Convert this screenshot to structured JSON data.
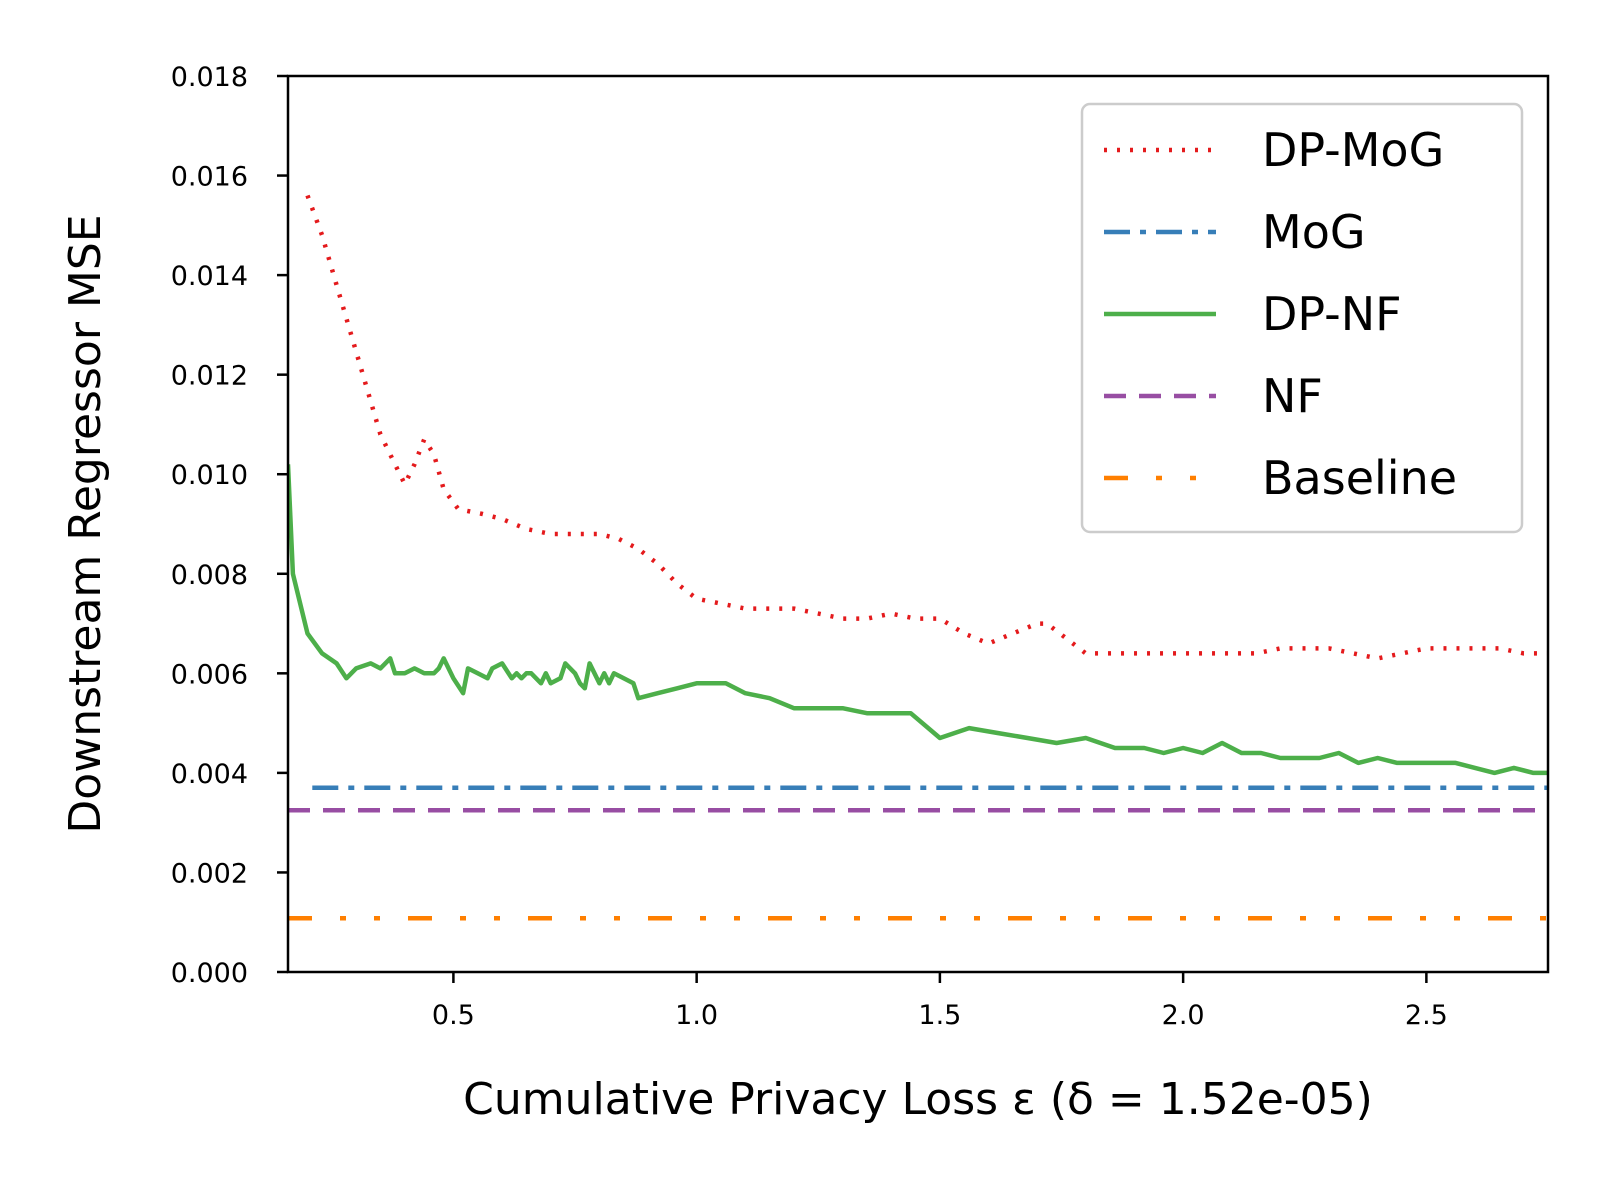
{
  "chart_data": {
    "type": "line",
    "title": "",
    "xlabel": "Cumulative Privacy Loss ε (δ  = 1.52e-05)",
    "ylabel": "Downstream Regressor MSE",
    "xlim": [
      0.16,
      2.75
    ],
    "ylim": [
      0,
      0.018
    ],
    "x_ticks": [
      "0.5",
      "1.0",
      "1.5",
      "2.0",
      "2.5"
    ],
    "x_tick_values": [
      0.5,
      1.0,
      1.5,
      2.0,
      2.5
    ],
    "y_ticks": [
      "0.000",
      "0.002",
      "0.004",
      "0.006",
      "0.008",
      "0.010",
      "0.012",
      "0.014",
      "0.016",
      "0.018"
    ],
    "y_tick_values": [
      0,
      0.002,
      0.004,
      0.006,
      0.008,
      0.01,
      0.012,
      0.014,
      0.016,
      0.018
    ],
    "grid": false,
    "legend_position": "top-right",
    "series": [
      {
        "name": "DP-MoG",
        "color": "#e41a1c",
        "style": "dotted",
        "x": [
          0.2,
          0.23,
          0.26,
          0.29,
          0.32,
          0.35,
          0.38,
          0.4,
          0.42,
          0.44,
          0.46,
          0.48,
          0.51,
          0.56,
          0.6,
          0.65,
          0.7,
          0.75,
          0.8,
          0.84,
          0.88,
          0.92,
          0.96,
          1.0,
          1.05,
          1.1,
          1.15,
          1.2,
          1.25,
          1.3,
          1.35,
          1.4,
          1.45,
          1.5,
          1.55,
          1.6,
          1.65,
          1.7,
          1.72,
          1.76,
          1.8,
          1.85,
          1.9,
          1.95,
          2.0,
          2.05,
          2.1,
          2.15,
          2.2,
          2.25,
          2.3,
          2.35,
          2.4,
          2.45,
          2.5,
          2.55,
          2.6,
          2.65,
          2.7,
          2.75
        ],
        "y": [
          0.0156,
          0.0148,
          0.0138,
          0.0128,
          0.0118,
          0.0108,
          0.0102,
          0.0098,
          0.0102,
          0.0107,
          0.0104,
          0.0097,
          0.0093,
          0.0092,
          0.0091,
          0.0089,
          0.0088,
          0.0088,
          0.0088,
          0.0087,
          0.0085,
          0.0082,
          0.0078,
          0.0075,
          0.0074,
          0.0073,
          0.0073,
          0.0073,
          0.0072,
          0.0071,
          0.0071,
          0.0072,
          0.0071,
          0.0071,
          0.0068,
          0.0066,
          0.0068,
          0.007,
          0.007,
          0.0067,
          0.0064,
          0.0064,
          0.0064,
          0.0064,
          0.0064,
          0.0064,
          0.0064,
          0.0064,
          0.0065,
          0.0065,
          0.0065,
          0.0064,
          0.0063,
          0.0064,
          0.0065,
          0.0065,
          0.0065,
          0.0065,
          0.0064,
          0.0064
        ]
      },
      {
        "name": "MoG",
        "color": "#377eb8",
        "style": "dashdot",
        "x": [
          0.21,
          2.75
        ],
        "y": [
          0.0037,
          0.0037
        ]
      },
      {
        "name": "DP-NF",
        "color": "#4daf4a",
        "style": "solid",
        "x": [
          0.16,
          0.17,
          0.2,
          0.23,
          0.26,
          0.28,
          0.3,
          0.33,
          0.35,
          0.36,
          0.37,
          0.38,
          0.4,
          0.42,
          0.44,
          0.46,
          0.47,
          0.48,
          0.5,
          0.52,
          0.53,
          0.55,
          0.57,
          0.58,
          0.6,
          0.62,
          0.63,
          0.64,
          0.65,
          0.66,
          0.68,
          0.69,
          0.7,
          0.72,
          0.73,
          0.75,
          0.76,
          0.77,
          0.78,
          0.8,
          0.81,
          0.82,
          0.83,
          0.85,
          0.87,
          0.88,
          0.92,
          0.96,
          1.0,
          1.06,
          1.1,
          1.15,
          1.2,
          1.25,
          1.3,
          1.35,
          1.4,
          1.44,
          1.5,
          1.56,
          1.62,
          1.68,
          1.74,
          1.8,
          1.86,
          1.92,
          1.96,
          2.0,
          2.04,
          2.08,
          2.12,
          2.16,
          2.2,
          2.24,
          2.28,
          2.32,
          2.36,
          2.4,
          2.44,
          2.48,
          2.52,
          2.56,
          2.6,
          2.64,
          2.68,
          2.72,
          2.75
        ],
        "y": [
          0.0102,
          0.008,
          0.0068,
          0.0064,
          0.0062,
          0.0059,
          0.0061,
          0.0062,
          0.0061,
          0.0062,
          0.0063,
          0.006,
          0.006,
          0.0061,
          0.006,
          0.006,
          0.0061,
          0.0063,
          0.0059,
          0.0056,
          0.0061,
          0.006,
          0.0059,
          0.0061,
          0.0062,
          0.0059,
          0.006,
          0.0059,
          0.006,
          0.006,
          0.0058,
          0.006,
          0.0058,
          0.0059,
          0.0062,
          0.006,
          0.0058,
          0.0057,
          0.0062,
          0.0058,
          0.006,
          0.0058,
          0.006,
          0.0059,
          0.0058,
          0.0055,
          0.0056,
          0.0057,
          0.0058,
          0.0058,
          0.0056,
          0.0055,
          0.0053,
          0.0053,
          0.0053,
          0.0052,
          0.0052,
          0.0052,
          0.0047,
          0.0049,
          0.0048,
          0.0047,
          0.0046,
          0.0047,
          0.0045,
          0.0045,
          0.0044,
          0.0045,
          0.0044,
          0.0046,
          0.0044,
          0.0044,
          0.0043,
          0.0043,
          0.0043,
          0.0044,
          0.0042,
          0.0043,
          0.0042,
          0.0042,
          0.0042,
          0.0042,
          0.0041,
          0.004,
          0.0041,
          0.004,
          0.004
        ]
      },
      {
        "name": "NF",
        "color": "#984ea3",
        "style": "dashed",
        "x": [
          0.16,
          2.75
        ],
        "y": [
          0.00325,
          0.00325
        ]
      },
      {
        "name": "Baseline",
        "color": "#ff7f00",
        "style": "dashdotdot",
        "x": [
          0.16,
          2.75
        ],
        "y": [
          0.00108,
          0.00108
        ]
      }
    ]
  }
}
